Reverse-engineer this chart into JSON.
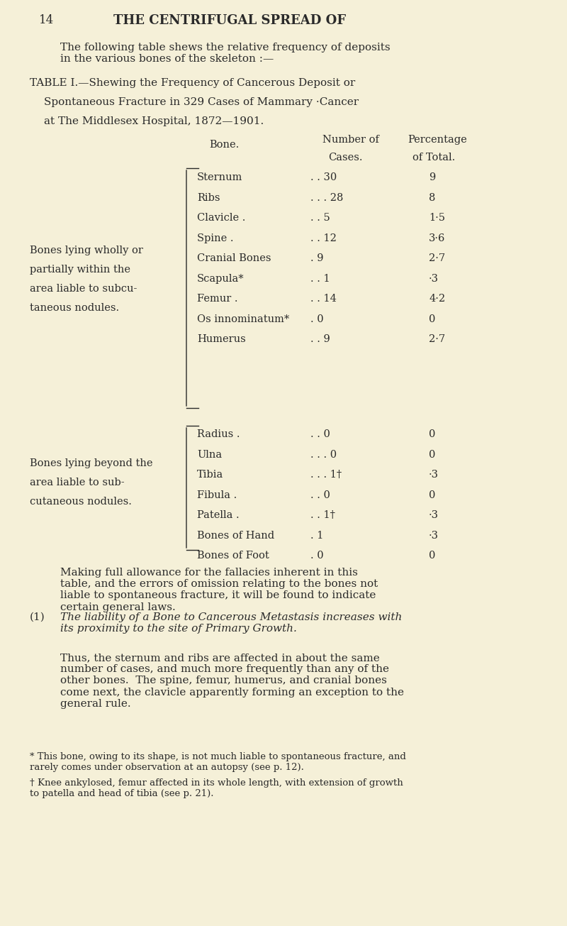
{
  "bg_color": "#f5f0d8",
  "text_color": "#2a2a2a",
  "page_number": "14",
  "header": "THE CENTRIFUGAL SPREAD OF",
  "intro_text": "The following table shews the relative frequency of deposits\nin the various bones of the skeleton :—",
  "table_title_line1": "TABLE I.—Shewing the Frequency of Cancerous Deposit or",
  "table_title_line2": "Spontaneous Fracture in 329 Cases of Mammary ·Cancer",
  "table_title_line3": "at The Middlesex Hospital, 1872—1901.",
  "col_header1": "Bone.",
  "col_header2": "Number of\nCases.",
  "col_header3": "Percentage\nof Total.",
  "group1_label_line1": "Bones lying wholly or",
  "group1_label_line2": "partially within the",
  "group1_label_line3": "area liable to subcu-",
  "group1_label_line4": "taneous nodules.",
  "group2_label_line1": "Bones lying beyond the",
  "group2_label_line2": "area liable to sub-",
  "group2_label_line3": "cutaneous nodules.",
  "group1_bones": [
    [
      "Sternum",
      ". . 30",
      "9"
    ],
    [
      "Ribs",
      ". . . 28",
      "8"
    ],
    [
      "Clavicle .",
      ". . 5",
      "1·5"
    ],
    [
      "Spine .",
      ". . 12",
      "3·6"
    ],
    [
      "Cranial Bones",
      ". 9",
      "2·7"
    ],
    [
      "Scapula*",
      ". . 1",
      "·3"
    ],
    [
      "Femur .",
      ". . 14",
      "4·2"
    ],
    [
      "Os innominatum*",
      ". 0",
      "0"
    ],
    [
      "Humerus",
      ". . 9",
      "2·7"
    ]
  ],
  "group2_bones": [
    [
      "Radius .",
      ". . 0",
      "0"
    ],
    [
      "Ulna",
      ". . . 0",
      "0"
    ],
    [
      "Tibia",
      ". . . 1†",
      "·3"
    ],
    [
      "Fibula .",
      ". . 0",
      "0"
    ],
    [
      "Patella .",
      ". . 1†",
      "·3"
    ],
    [
      "Bones of Hand",
      ". 1",
      "·3"
    ],
    [
      "Bones of Foot",
      ". 0",
      "0"
    ]
  ],
  "para1": "Making full allowance for the fallacies inherent in this\ntable, and the errors of omission relating to the bones not\nliable to spontaneous fracture, it will be found to indicate\ncertain general laws.",
  "para2_label": "(1)",
  "para2_italic": "The liability of a Bone to Cancerous Metastasis increases with\nits proximity to the site of Primary Growth.",
  "para3": "Thus, the sternum and ribs are affected in about the same\nnumber of cases, and much more frequently than any of the\nother bones.  The spine, femur, humerus, and cranial bones\ncome next, the clavicle apparently forming an exception to the\ngeneral rule.",
  "footnote1": "* This bone, owing to its shape, is not much liable to spontaneous fracture, and\nrarely comes under observation at an autopsy (see p. 12).",
  "footnote2": "† Knee ankylosed, femur affected in its whole length, with extension of growth\nto patella and head of tibia (see p. 21)."
}
